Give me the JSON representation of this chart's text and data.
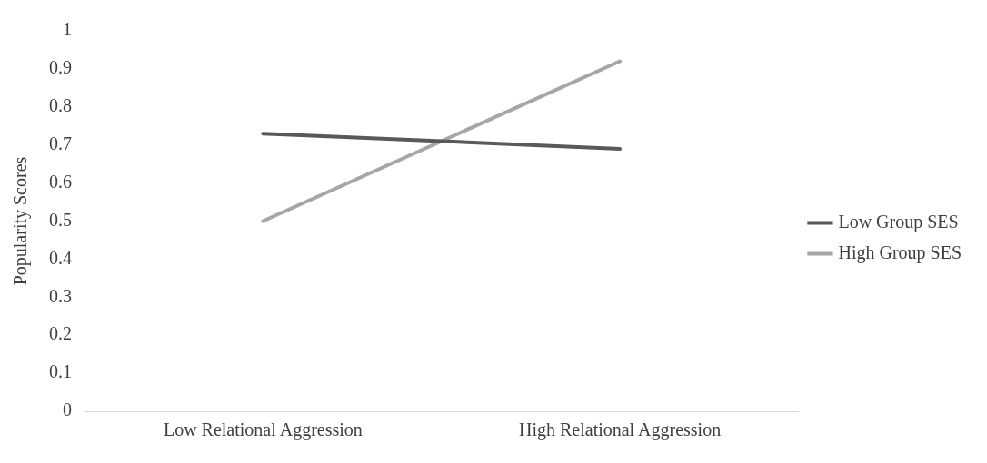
{
  "chart_data": {
    "type": "line",
    "categories": [
      "Low Relational Aggression",
      "High Relational Aggression"
    ],
    "series": [
      {
        "name": "Low Group SES",
        "color": "#595959",
        "values": [
          0.73,
          0.69
        ]
      },
      {
        "name": "High Group SES",
        "color": "#a6a6a6",
        "values": [
          0.5,
          0.92
        ]
      }
    ],
    "ylabel": "Popularity Scores",
    "ylim": [
      0,
      1
    ],
    "yticks": [
      0,
      0.1,
      0.2,
      0.3,
      0.4,
      0.5,
      0.6,
      0.7,
      0.8,
      0.9,
      1
    ],
    "grid": false,
    "legend": "right",
    "marker": "none",
    "line_style": "solid"
  }
}
